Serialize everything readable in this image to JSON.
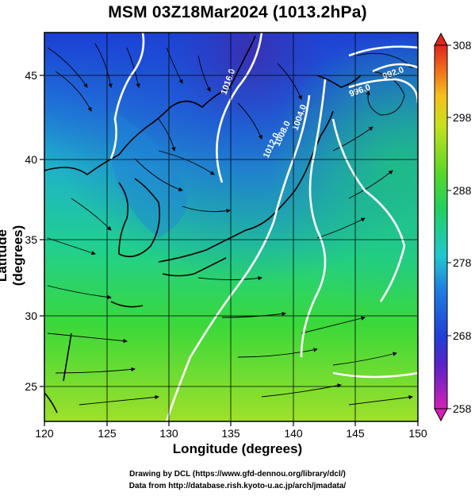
{
  "title": "MSM 03Z18Mar2024 (1013.2hPa)",
  "x_axis": {
    "label": "Longitude (degrees)",
    "ticks": [
      "120",
      "125",
      "130",
      "135",
      "140",
      "145",
      "150"
    ]
  },
  "y_axis": {
    "label": "Latitude  (degrees)",
    "ticks": [
      "25",
      "30",
      "35",
      "40",
      "45"
    ]
  },
  "colorbar": {
    "ticks": [
      "258",
      "268",
      "278",
      "288",
      "298",
      "308"
    ],
    "min": 258,
    "max": 308
  },
  "contours": [
    {
      "label": "1016.0"
    },
    {
      "label": "1012.0"
    },
    {
      "label": "1008.0"
    },
    {
      "label": "1004.0"
    },
    {
      "label": "996.0"
    },
    {
      "label": "992.0"
    }
  ],
  "credits": {
    "line1": "Drawing by DCL (https://www.gfd-dennou.org/library/dcl/)",
    "line2": "Data from http://database.rish.kyoto-u.ac.jp/arch/jmadata/"
  },
  "colors": {
    "frame": "#000000",
    "contour": "#ffffff",
    "streamline": "#000000"
  }
}
